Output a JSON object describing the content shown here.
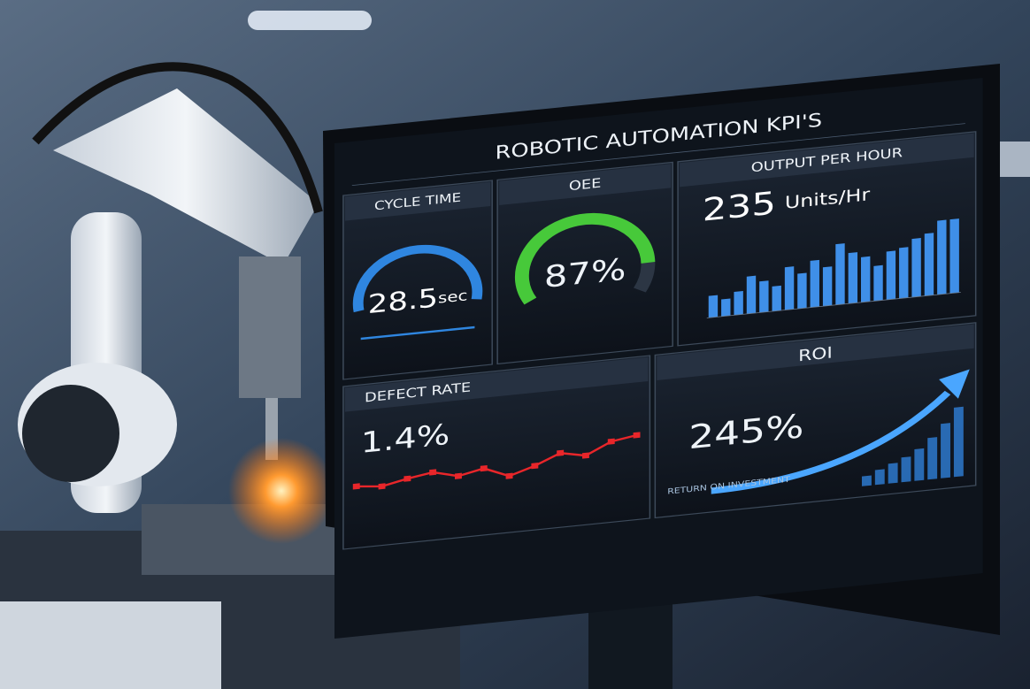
{
  "title": "ROBOTIC AUTOMATION KPI'S",
  "cycle_time": {
    "label": "CYCLE TIME",
    "value": "28.5",
    "unit": "sec"
  },
  "oee": {
    "label": "OEE",
    "value": 87,
    "value_label": "87%",
    "max": 100
  },
  "output_per_hour": {
    "label": "OUTPUT PER HOUR",
    "value": "235",
    "unit": "Units/Hr",
    "bars": [
      28,
      22,
      30,
      48,
      40,
      32,
      55,
      45,
      60,
      50,
      78,
      65,
      58,
      45,
      62,
      65,
      75,
      80,
      95,
      95
    ],
    "ylim": [
      0,
      100
    ],
    "color": "#3f8fe8"
  },
  "defect_rate": {
    "label": "DEFECT RATE",
    "value": "1.4%",
    "line": [
      40,
      38,
      42,
      45,
      40,
      44,
      36,
      42,
      50,
      46,
      55,
      58
    ],
    "ylim": [
      0,
      100
    ],
    "color": "#e8262a"
  },
  "roi": {
    "label": "ROI",
    "value": "245%",
    "caption": "RETURN ON INVESTMENT",
    "bars": [
      10,
      15,
      20,
      25,
      32,
      42,
      55,
      70
    ],
    "ylim": [
      0,
      100
    ],
    "color": "#2f7fd8"
  }
}
